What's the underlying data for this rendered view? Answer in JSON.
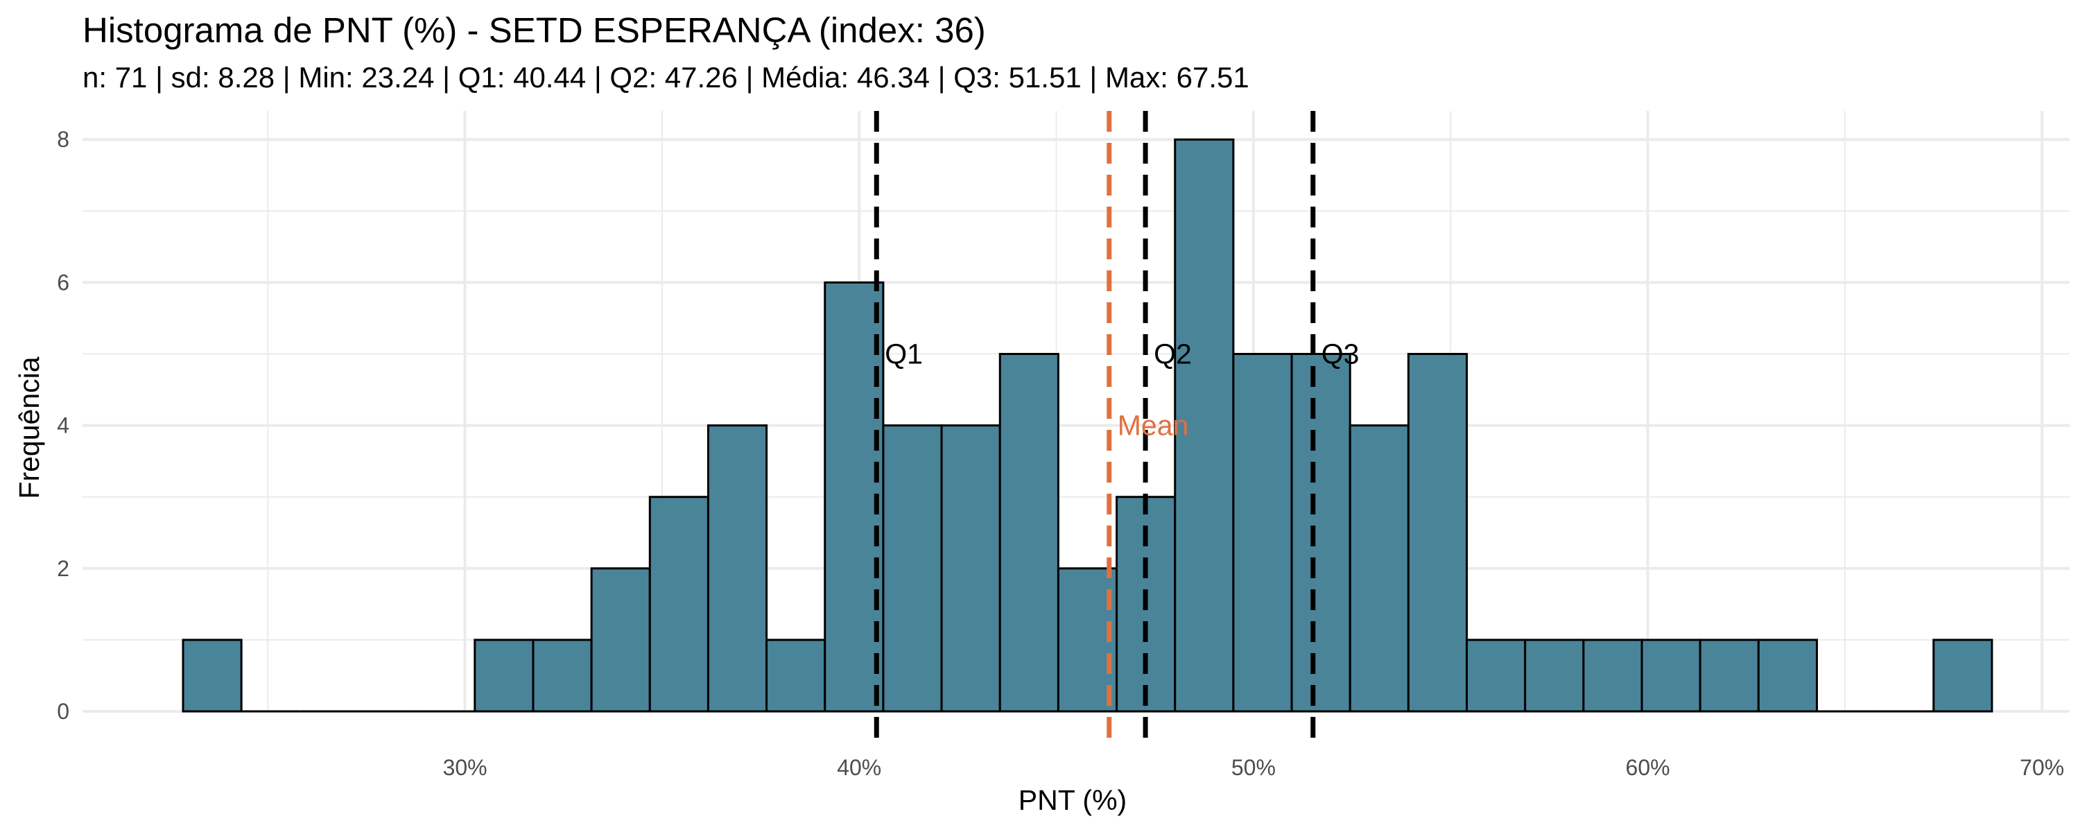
{
  "chart_data": {
    "type": "bar",
    "title": "Histograma de PNT (%) - SETD ESPERANÇA (index: 36)",
    "subtitle": "n: 71  |  sd: 8.28  |  Min: 23.24  |  Q1: 40.44  |  Q2: 47.26  |  Média: 46.34  |  Q3: 51.51  |  Max: 67.51",
    "xlabel": "PNT (%)",
    "ylabel": "Frequência",
    "xlim": [
      20.3,
      70.7
    ],
    "ylim": [
      0,
      8.4
    ],
    "x_ticks": [
      30,
      40,
      50,
      60,
      70
    ],
    "x_tick_labels": [
      "30%",
      "40%",
      "50%",
      "60%",
      "70%"
    ],
    "y_ticks": [
      0,
      2,
      4,
      6,
      8
    ],
    "y_tick_labels": [
      "0",
      "2",
      "4",
      "6",
      "8"
    ],
    "grid": true,
    "bins": {
      "start": 22.85,
      "width": 1.48,
      "counts": [
        1,
        0,
        0,
        0,
        0,
        1,
        1,
        2,
        3,
        4,
        1,
        6,
        4,
        4,
        5,
        2,
        3,
        8,
        5,
        5,
        4,
        5,
        1,
        1,
        1,
        1,
        1,
        1,
        0,
        0,
        1
      ]
    },
    "reference_lines": [
      {
        "label": "Q1",
        "value": 40.44,
        "color": "#000000",
        "label_y": 5
      },
      {
        "label": "Q2",
        "value": 47.26,
        "color": "#000000",
        "label_y": 5
      },
      {
        "label": "Q3",
        "value": 51.51,
        "color": "#000000",
        "label_y": 5
      },
      {
        "label": "Mean",
        "value": 46.34,
        "color": "#E07040",
        "label_y": 4
      }
    ],
    "colors": {
      "bar_fill": "#4A8499",
      "bar_stroke": "#000000",
      "grid": "#EBEBEB",
      "mean": "#E07040"
    }
  }
}
